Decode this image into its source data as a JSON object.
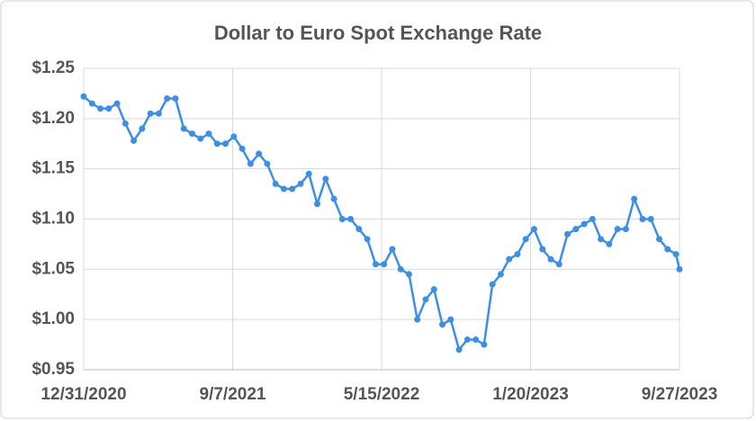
{
  "chart_data": {
    "type": "line",
    "title": "Dollar to Euro Spot Exchange Rate",
    "x": [
      "12/31/2020",
      "1/14/2021",
      "1/28/2021",
      "2/11/2021",
      "2/25/2021",
      "3/11/2021",
      "3/25/2021",
      "4/8/2021",
      "4/22/2021",
      "5/6/2021",
      "5/20/2021",
      "6/3/2021",
      "6/17/2021",
      "7/1/2021",
      "7/15/2021",
      "7/29/2021",
      "8/12/2021",
      "8/26/2021",
      "9/9/2021",
      "9/23/2021",
      "10/7/2021",
      "10/21/2021",
      "11/4/2021",
      "11/18/2021",
      "12/2/2021",
      "12/16/2021",
      "12/30/2021",
      "1/13/2022",
      "1/27/2022",
      "2/10/2022",
      "2/24/2022",
      "3/10/2022",
      "3/24/2022",
      "4/7/2022",
      "4/21/2022",
      "5/5/2022",
      "5/19/2022",
      "6/2/2022",
      "6/16/2022",
      "6/30/2022",
      "7/14/2022",
      "7/28/2022",
      "8/11/2022",
      "8/25/2022",
      "9/8/2022",
      "9/22/2022",
      "10/6/2022",
      "10/20/2022",
      "11/3/2022",
      "11/17/2022",
      "12/1/2022",
      "12/15/2022",
      "12/29/2022",
      "1/12/2023",
      "1/26/2023",
      "2/9/2023",
      "2/23/2023",
      "3/9/2023",
      "3/23/2023",
      "4/6/2023",
      "4/20/2023",
      "5/4/2023",
      "5/18/2023",
      "6/1/2023",
      "6/15/2023",
      "6/29/2023",
      "7/13/2023",
      "7/27/2023",
      "8/10/2023",
      "8/24/2023",
      "9/7/2023",
      "9/21/2023",
      "9/27/2023"
    ],
    "series": [
      {
        "name": "Dollar to Euro",
        "color": "#3b8fe8",
        "values": [
          1.222,
          1.215,
          1.21,
          1.21,
          1.215,
          1.195,
          1.178,
          1.19,
          1.205,
          1.205,
          1.22,
          1.22,
          1.19,
          1.185,
          1.18,
          1.185,
          1.175,
          1.175,
          1.182,
          1.17,
          1.155,
          1.165,
          1.155,
          1.135,
          1.13,
          1.13,
          1.135,
          1.145,
          1.115,
          1.14,
          1.12,
          1.1,
          1.1,
          1.09,
          1.08,
          1.055,
          1.055,
          1.07,
          1.05,
          1.045,
          1.0,
          1.02,
          1.03,
          0.995,
          1.0,
          0.97,
          0.98,
          0.98,
          0.975,
          1.035,
          1.045,
          1.06,
          1.065,
          1.08,
          1.09,
          1.07,
          1.06,
          1.055,
          1.085,
          1.09,
          1.095,
          1.1,
          1.08,
          1.075,
          1.09,
          1.09,
          1.12,
          1.1,
          1.1,
          1.08,
          1.07,
          1.065,
          1.05
        ]
      }
    ],
    "xlim": [
      "12/31/2020",
      "9/27/2023"
    ],
    "xticks": [
      "12/31/2020",
      "9/7/2021",
      "5/15/2022",
      "1/20/2023",
      "9/27/2023"
    ],
    "ylim": [
      0.95,
      1.25
    ],
    "yticks": [
      {
        "value": 0.95,
        "label": "$0.95"
      },
      {
        "value": 1.0,
        "label": "$1.00"
      },
      {
        "value": 1.05,
        "label": "$1.05"
      },
      {
        "value": 1.1,
        "label": "$1.10"
      },
      {
        "value": 1.15,
        "label": "$1.15"
      },
      {
        "value": 1.2,
        "label": "$1.20"
      },
      {
        "value": 1.25,
        "label": "$1.25"
      }
    ],
    "grid": true
  }
}
